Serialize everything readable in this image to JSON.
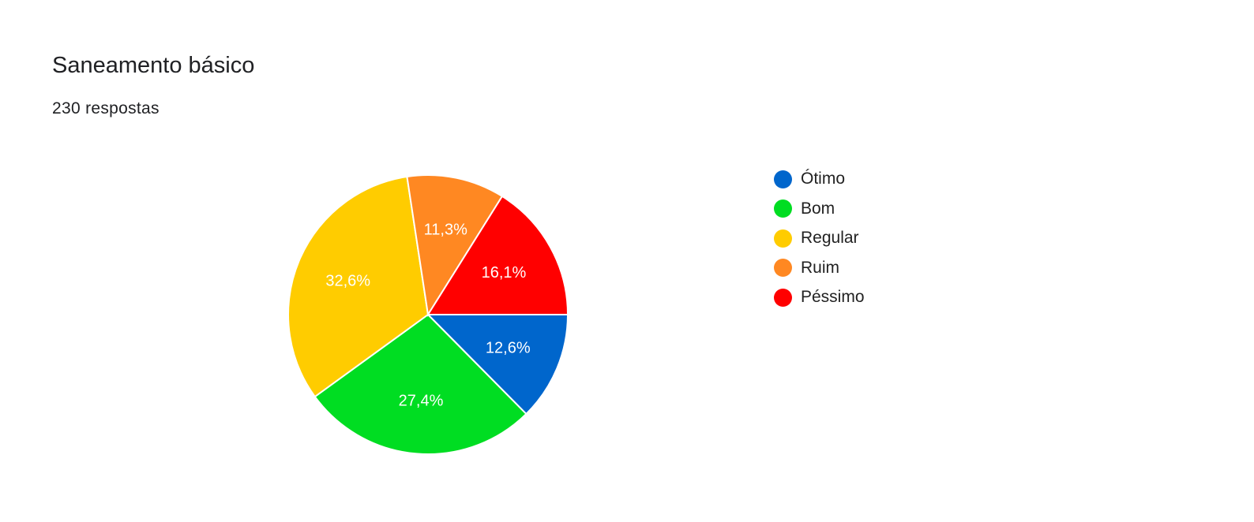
{
  "header": {
    "title": "Saneamento básico",
    "subtitle": "230 respostas"
  },
  "chart_data": {
    "type": "pie",
    "title": "Saneamento básico",
    "subtitle": "230 respostas",
    "categories": [
      "Ótimo",
      "Bom",
      "Regular",
      "Ruim",
      "Péssimo"
    ],
    "values": [
      12.6,
      27.4,
      32.6,
      11.3,
      16.1
    ],
    "data_labels": [
      "12,6%",
      "27,4%",
      "32,6%",
      "11,3%",
      "16,1%"
    ],
    "colors": [
      "#0066cc",
      "#00dd22",
      "#ffcc00",
      "#ff8822",
      "#ff0000"
    ],
    "label_colors": [
      "#ffffff",
      "#ffffff",
      "#ffffff",
      "#ffffff",
      "#ffffff"
    ],
    "legend_position": "right",
    "start_angle": "east",
    "direction": "clockwise"
  }
}
